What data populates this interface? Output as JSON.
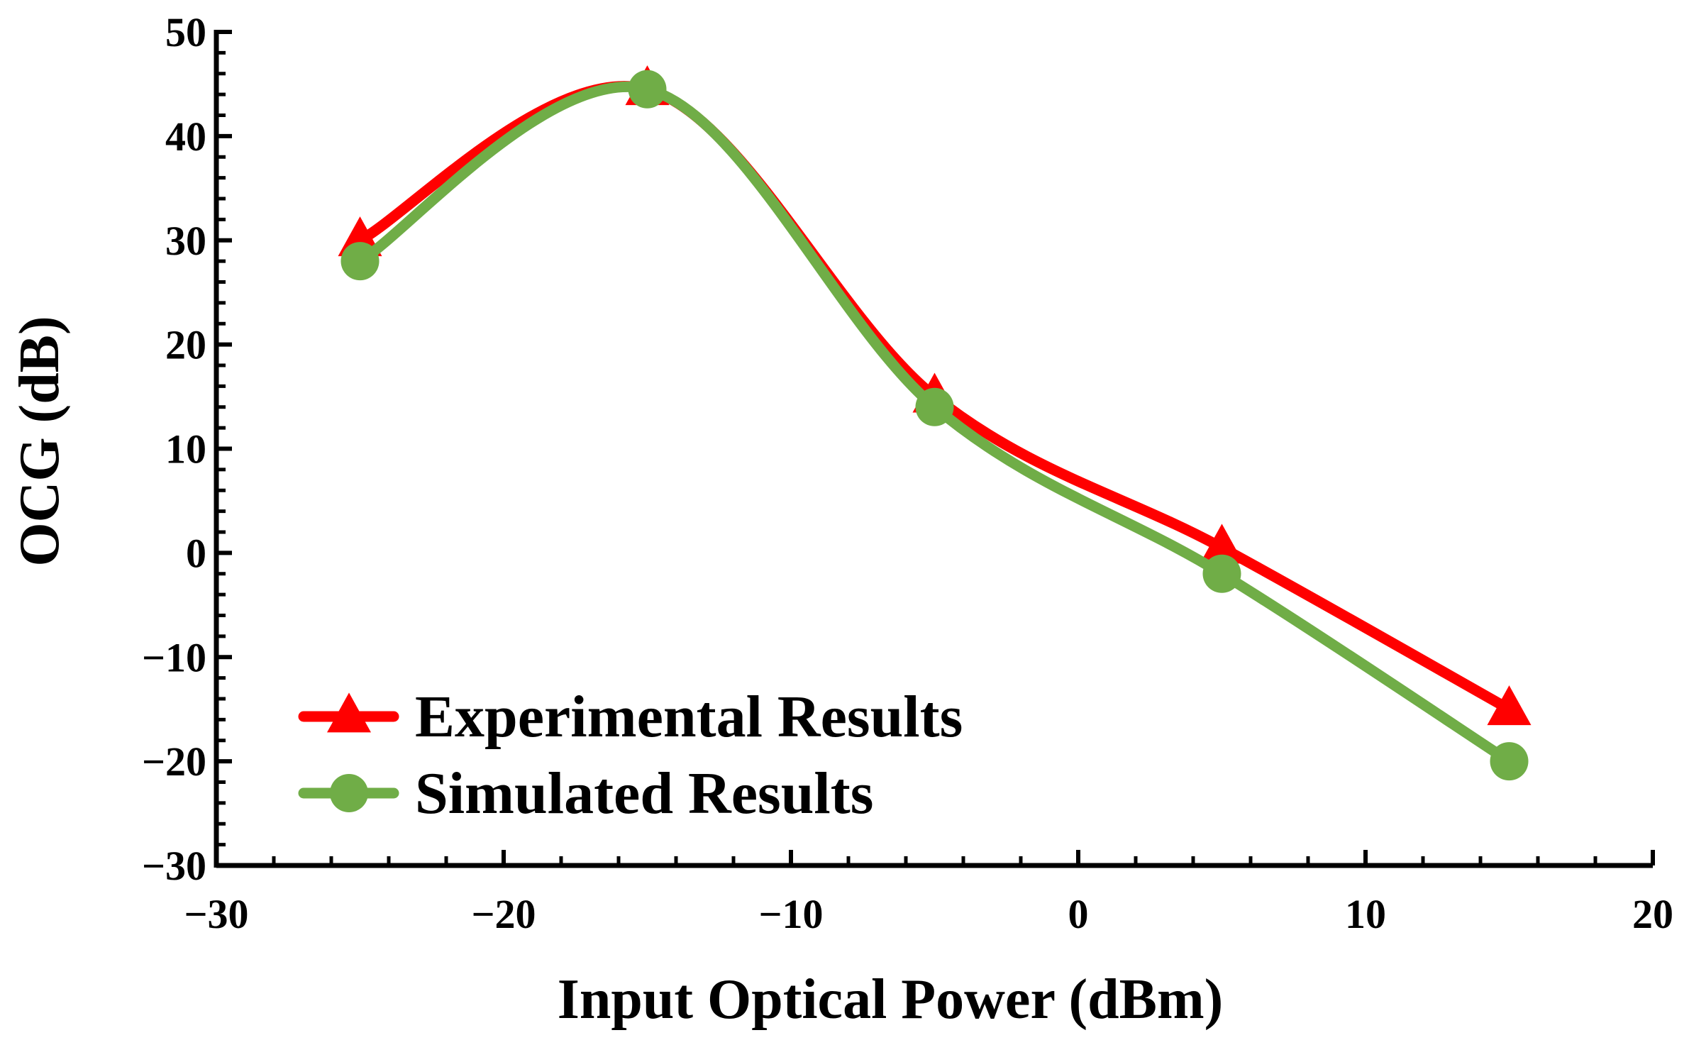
{
  "chart_data": {
    "type": "line",
    "xlabel": "Input Optical Power (dBm)",
    "ylabel": "OCG (dB)",
    "xlim": [
      -30,
      20
    ],
    "ylim": [
      -30,
      50
    ],
    "x_ticks": [
      -30,
      -20,
      -10,
      0,
      10,
      20
    ],
    "y_ticks": [
      -30,
      -20,
      -10,
      0,
      10,
      20,
      30,
      40,
      50
    ],
    "x_tick_labels": [
      "−30",
      "−20",
      "−10",
      "0",
      "10",
      "20"
    ],
    "y_tick_labels": [
      "−30",
      "−20",
      "−10",
      "0",
      "10",
      "20",
      "30",
      "40",
      "50"
    ],
    "grid": false,
    "legend_position": "bottom-left",
    "x": [
      -25,
      -15,
      -5,
      5,
      15
    ],
    "series": [
      {
        "name": "Experimental Results",
        "values": [
          30,
          44.5,
          15,
          0.5,
          -15
        ],
        "color": "#ff0000",
        "marker": "triangle",
        "smooth": true
      },
      {
        "name": "Simulated Results",
        "values": [
          28,
          44.5,
          14,
          -2,
          -20
        ],
        "color": "#70ad47",
        "marker": "circle",
        "smooth": true
      }
    ]
  }
}
